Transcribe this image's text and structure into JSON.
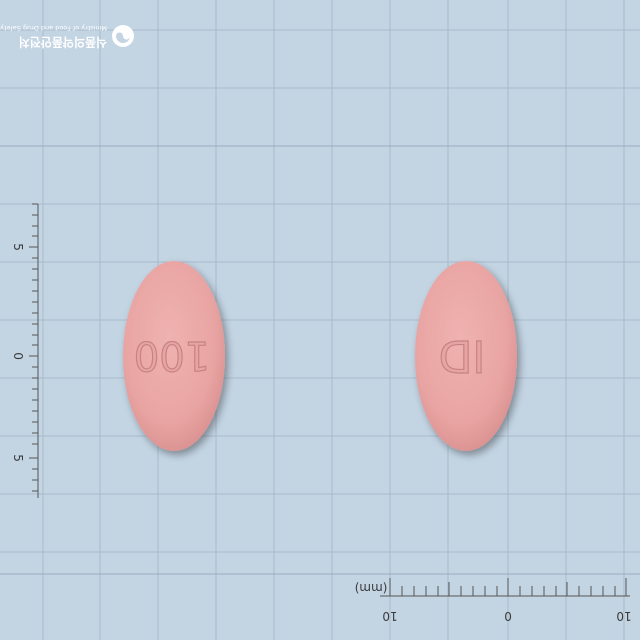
{
  "watermark": {
    "org_korean": "식품의약품안전처",
    "org_english": "Ministry of Food and Drug Safety",
    "logo_icon": "mfds-logo-icon"
  },
  "ruler": {
    "unit_label": "(mm)",
    "horizontal_labels": [
      "10",
      "0",
      "10"
    ],
    "vertical_labels": [
      "5",
      "0",
      "5"
    ]
  },
  "pills": [
    {
      "imprint": "100",
      "color": "#e8a4a2"
    },
    {
      "imprint": "ID",
      "color": "#e8a4a2"
    }
  ],
  "colors": {
    "background": "#c3d4e3",
    "grid_line": "#a9bccd",
    "pill": "#e8a4a2",
    "ruler_ink": "#3b3b3b",
    "watermark": "#ffffff"
  }
}
